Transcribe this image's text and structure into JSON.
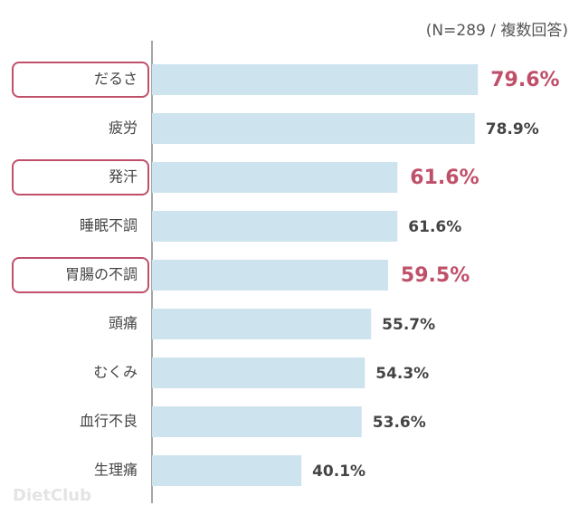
{
  "chart_data": {
    "type": "bar",
    "orientation": "horizontal",
    "annotation": "(N=289 / 複数回答)",
    "watermark": "DietClub",
    "categories": [
      "だるさ",
      "疲労",
      "発汗",
      "睡眠不調",
      "胃腸の不調",
      "頭痛",
      "むくみ",
      "血行不良",
      "生理痛"
    ],
    "values": [
      79.6,
      78.9,
      61.6,
      61.6,
      59.5,
      55.7,
      54.3,
      53.6,
      40.1
    ],
    "value_labels": [
      "79.6%",
      "78.9%",
      "61.6%",
      "61.6%",
      "59.5%",
      "55.7%",
      "54.3%",
      "53.6%",
      "40.1%"
    ],
    "color": "#cde3ee",
    "highlighted": [
      true,
      false,
      true,
      false,
      true,
      false,
      false,
      false,
      false
    ],
    "highlight_color": "#c0506a",
    "text_color": "#444444"
  }
}
